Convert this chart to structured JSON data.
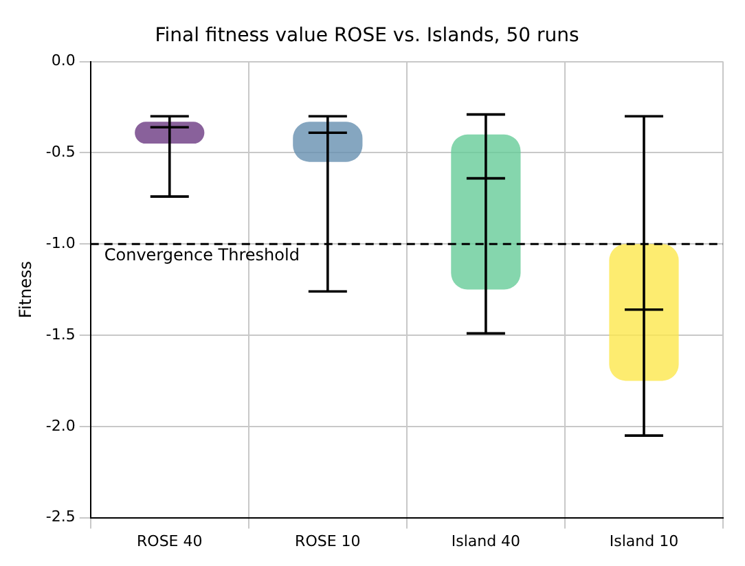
{
  "chart_data": {
    "type": "box",
    "title": "Final fitness value ROSE vs. Islands, 50 runs",
    "ylabel": "Fitness",
    "categories": [
      "ROSE 40",
      "ROSE 10",
      "Island 40",
      "Island 10"
    ],
    "boxes": [
      {
        "low": -0.74,
        "q1": -0.45,
        "median": -0.36,
        "q3": -0.33,
        "high": -0.3
      },
      {
        "low": -1.26,
        "q1": -0.55,
        "median": -0.39,
        "q3": -0.33,
        "high": -0.3
      },
      {
        "low": -1.49,
        "q1": -1.25,
        "median": -0.64,
        "q3": -0.4,
        "high": -0.29
      },
      {
        "low": -2.05,
        "q1": -1.75,
        "median": -1.36,
        "q3": -1.0,
        "high": -0.3
      }
    ],
    "colors": [
      "#6c3a82",
      "#6690b0",
      "#66cc98",
      "#fde74c"
    ],
    "ylim": [
      -2.5,
      0
    ],
    "yticks": [
      -2.5,
      {
        "value": -2,
        "label": "-2.0"
      },
      -1.5,
      {
        "value": -1,
        "label": "-1.0"
      },
      -0.5,
      {
        "value": 0,
        "label": "0.0"
      }
    ],
    "ref_lines": [
      {
        "axis": "y",
        "value": -1.0,
        "label": "Convergence Threshold",
        "color": "#000000",
        "line_style": "dashed"
      }
    ],
    "grid": true,
    "legend": false
  }
}
